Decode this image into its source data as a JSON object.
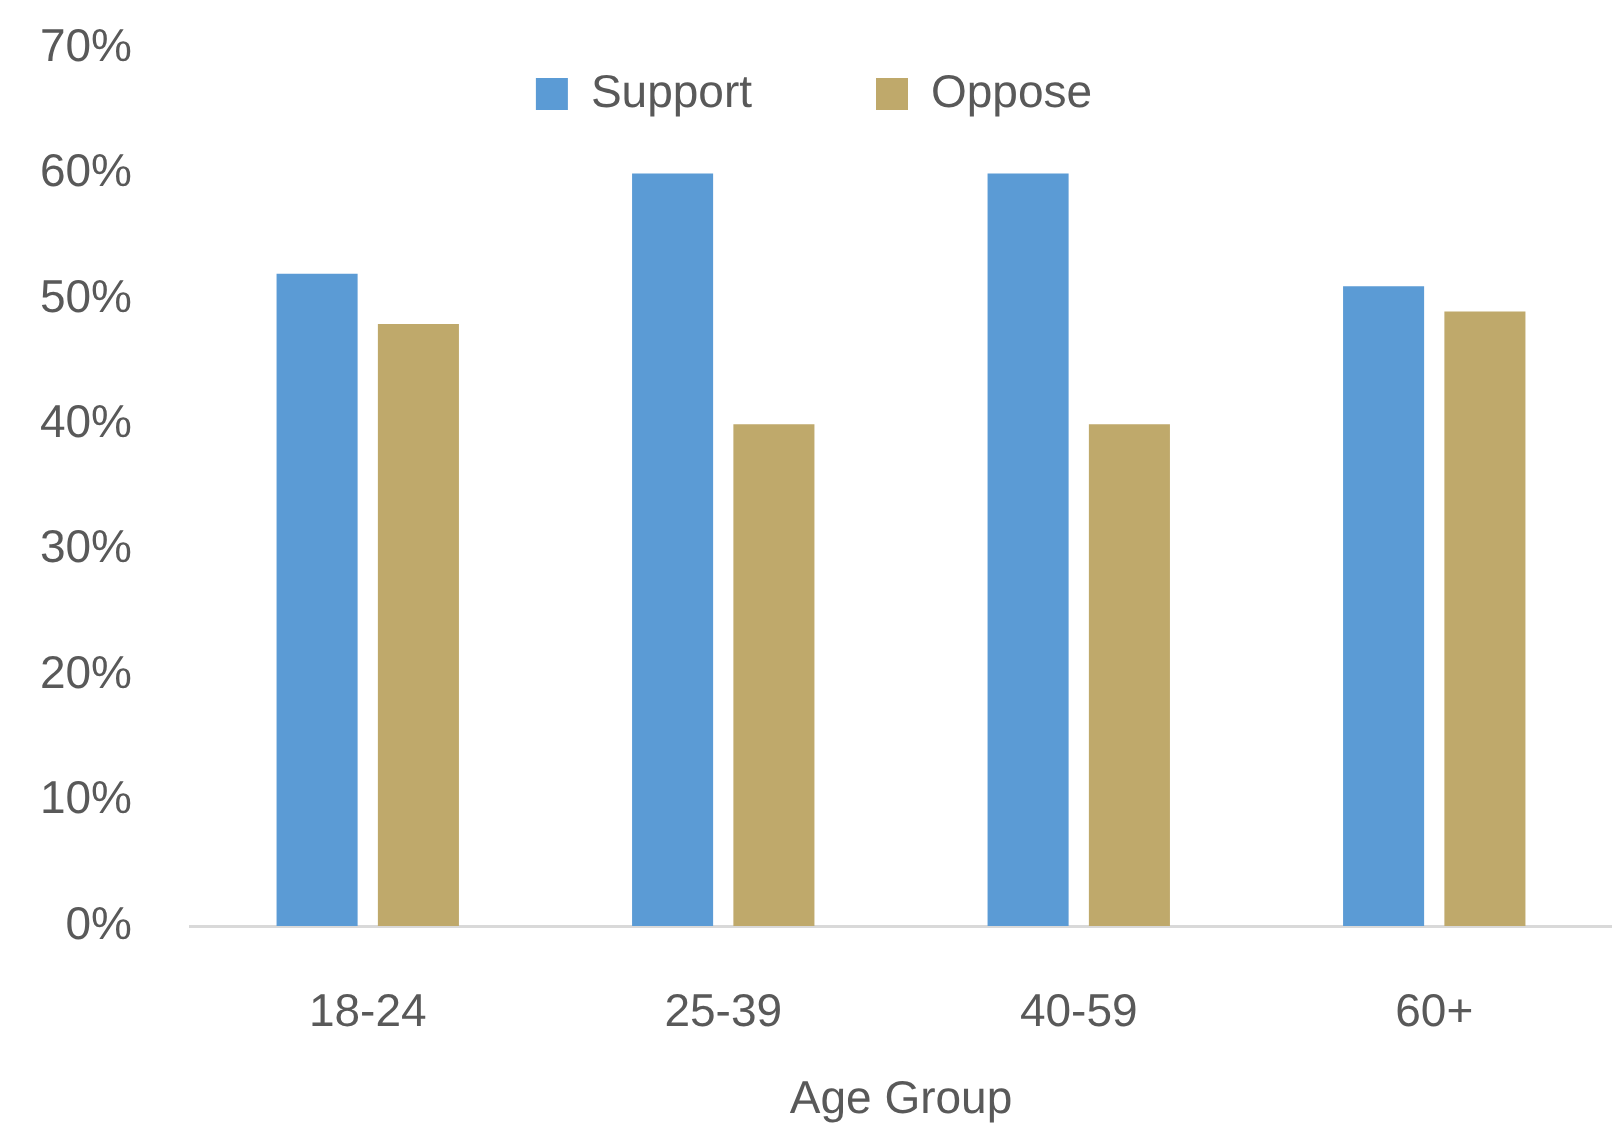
{
  "chart_data": {
    "type": "bar",
    "xlabel": "Age Group",
    "categories": [
      "18-24",
      "25-39",
      "40-59",
      "60+"
    ],
    "series": [
      {
        "name": "Support",
        "color": "#5b9bd5",
        "values": [
          52,
          60,
          60,
          51
        ]
      },
      {
        "name": "Oppose",
        "color": "#bfa96b",
        "values": [
          48,
          40,
          40,
          49
        ]
      }
    ],
    "ylim": [
      0,
      70
    ],
    "yticks": [
      {
        "value": 0,
        "label": "0%"
      },
      {
        "value": 10,
        "label": "10%"
      },
      {
        "value": 20,
        "label": "20%"
      },
      {
        "value": 30,
        "label": "30%"
      },
      {
        "value": 40,
        "label": "40%"
      },
      {
        "value": 50,
        "label": "50%"
      },
      {
        "value": 60,
        "label": "60%"
      },
      {
        "value": 70,
        "label": "70%"
      }
    ],
    "grid": false,
    "legend": "top"
  }
}
